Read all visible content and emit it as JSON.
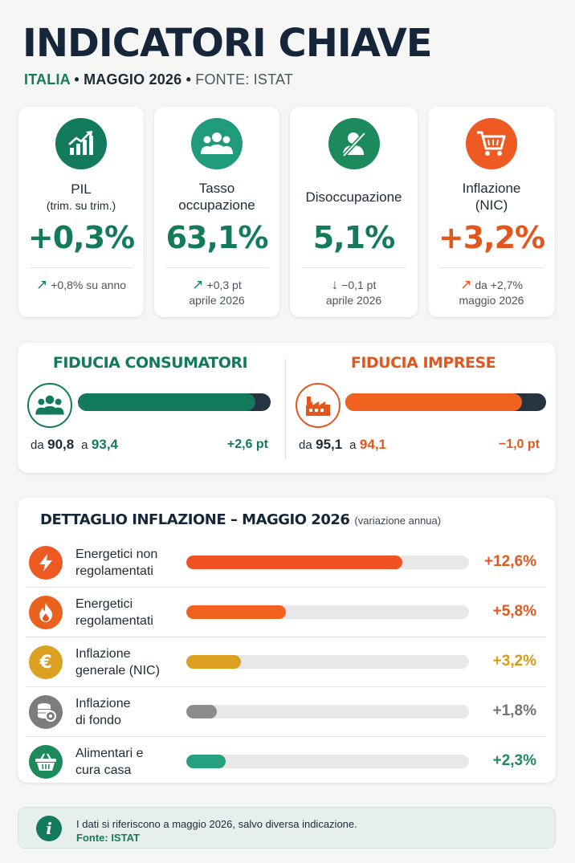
{
  "header": {
    "title": "INDICATORI CHIAVE",
    "country": "ITALIA",
    "period": "MAGGIO 2026",
    "source": "FONTE: ISTAT",
    "sep": "•"
  },
  "kpis": [
    {
      "label": "PIL",
      "sublabel": "(trim. su trim.)",
      "value": "+0,3%",
      "arrow": "↗",
      "change": "+0,8%",
      "change_suffix": "su anno",
      "change_ref": "",
      "color": "#147a5c",
      "icon": "growth-chart-icon"
    },
    {
      "label": "Tasso",
      "sublabel": "occupazione",
      "value": "63,1%",
      "arrow": "↗",
      "change": "+0,3 pt",
      "change_suffix": "",
      "change_ref": "aprile 2026",
      "color": "#147a5c",
      "icon": "people-group-icon"
    },
    {
      "label": "Disoccupazione",
      "sublabel": "",
      "value": "5,1%",
      "arrow": "↓",
      "change": "−0,1 pt",
      "change_suffix": "",
      "change_ref": "aprile 2026",
      "color": "#147a5c",
      "icon": "person-slash-icon"
    },
    {
      "label": "Inflazione",
      "sublabel": "(NIC)",
      "value": "+3,2%",
      "arrow": "↗",
      "change": "da +2,7%",
      "change_suffix": "",
      "change_ref": "maggio 2026",
      "color": "#e2571e",
      "icon": "shopping-cart-icon"
    }
  ],
  "confidence": {
    "consumers": {
      "title": "FIDUCIA CONSUMATORI",
      "from_label": "da",
      "from": "90,8",
      "to_label": "a",
      "to": "93,4",
      "delta": "+2,6 pt",
      "fill_fraction": 0.92,
      "color": "#147a5c",
      "icon": "people-group-icon"
    },
    "business": {
      "title": "FIDUCIA IMPRESE",
      "from_label": "da",
      "from": "95,1",
      "to_label": "a",
      "to": "94,1",
      "delta": "−1,0 pt",
      "fill_fraction": 0.88,
      "color": "#f0621e",
      "icon": "factory-icon"
    }
  },
  "chart_data": {
    "type": "bar",
    "title": "DETTAGLIO INFLAZIONE – MAGGIO 2026",
    "subtitle": "(variazione annua)",
    "categories": [
      "Energetici non regolamentati",
      "Energetici regolamentati",
      "Inflazione generale (NIC)",
      "Inflazione di fondo",
      "Alimentari e cura casa"
    ],
    "values": [
      12.6,
      5.8,
      3.2,
      1.8,
      2.3
    ],
    "value_labels": [
      "+12,6%",
      "+5,8%",
      "+3,2%",
      "+1,8%",
      "+2,3%"
    ],
    "label_lines": [
      [
        "Energetici non",
        "regolamentati"
      ],
      [
        "Energetici",
        "regolamentati"
      ],
      [
        "Inflazione",
        "generale (NIC)"
      ],
      [
        "Inflazione",
        "di fondo"
      ],
      [
        "Alimentari e",
        "cura casa"
      ]
    ],
    "colors": [
      "#f05223",
      "#f0621e",
      "#dba020",
      "#8c8c8c",
      "#26a17f"
    ],
    "icons": [
      "lightning-icon",
      "flame-icon",
      "euro-icon",
      "coins-icon",
      "basket-icon"
    ],
    "xlim": [
      0,
      16.5
    ]
  },
  "footer": {
    "info_glyph": "i",
    "text": "I dati si riferiscono a maggio 2026, salvo diversa indicazione.",
    "source": "Fonte: ISTAT"
  }
}
